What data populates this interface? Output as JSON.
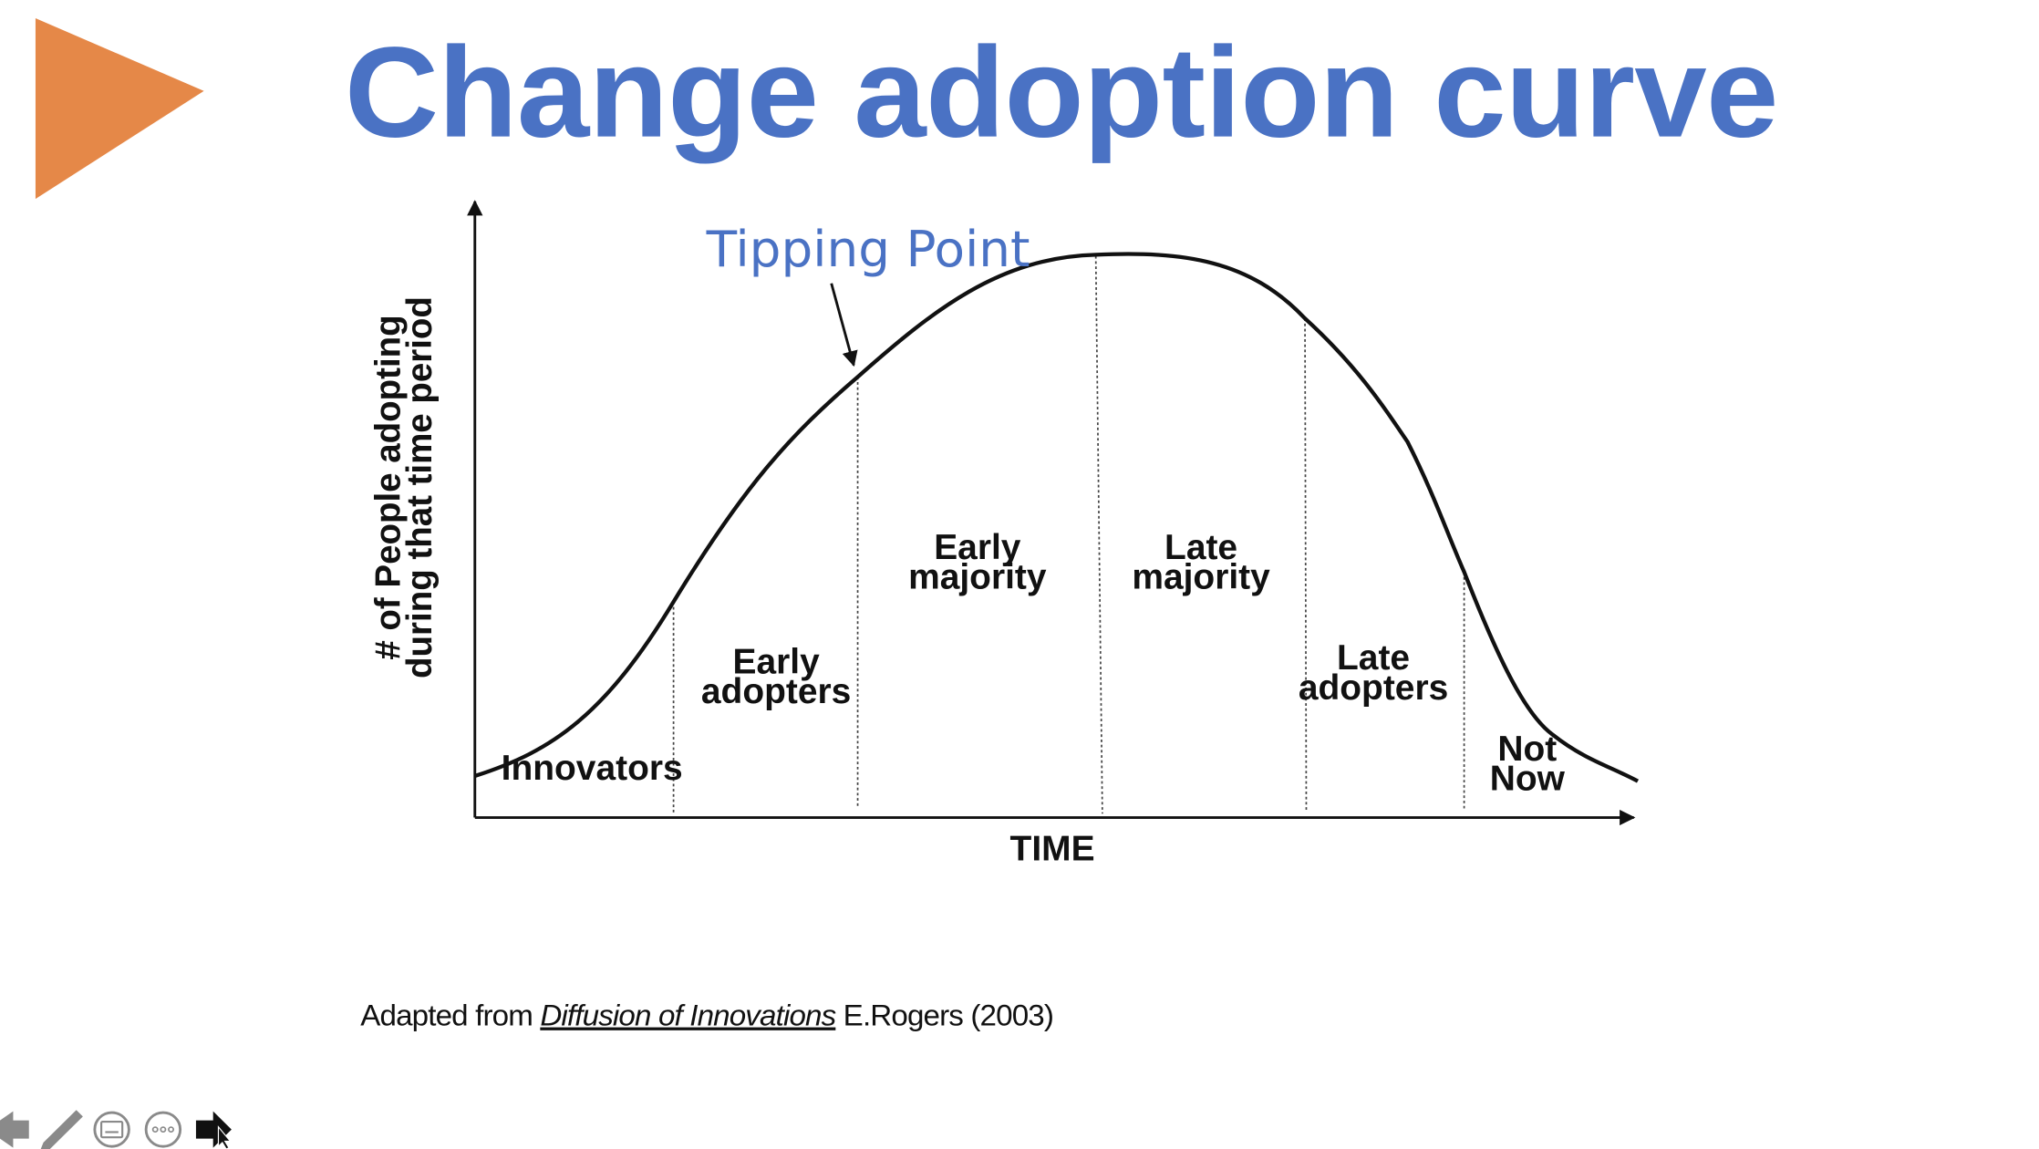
{
  "slide": {
    "title": "Change adoption curve",
    "accent_color": "#E58848",
    "title_color": "#4A72C4"
  },
  "chart_data": {
    "type": "line",
    "title": "",
    "xlabel": "TIME",
    "ylabel_line1": "# of People adopting",
    "ylabel_line2": "during that time period",
    "annotation": "Tipping Point",
    "annotation_color": "#4A72C4",
    "segments": [
      {
        "label_lines": [
          "Innovators"
        ]
      },
      {
        "label_lines": [
          "Early",
          "adopters"
        ]
      },
      {
        "label_lines": [
          "Early",
          "majority"
        ]
      },
      {
        "label_lines": [
          "Late",
          "majority"
        ]
      },
      {
        "label_lines": [
          "Late",
          "adopters"
        ]
      },
      {
        "label_lines": [
          "Not",
          "Now"
        ]
      }
    ],
    "curve_shape": "bell"
  },
  "source": {
    "prefix": "Adapted from ",
    "work": "Diffusion of Innovations",
    "suffix": " E.Rogers (2003)"
  },
  "controls": [
    {
      "icon": "back-arrow-icon"
    },
    {
      "icon": "pen-icon"
    },
    {
      "icon": "subtitles-icon"
    },
    {
      "icon": "more-options-icon"
    },
    {
      "icon": "pointer-icon"
    }
  ]
}
